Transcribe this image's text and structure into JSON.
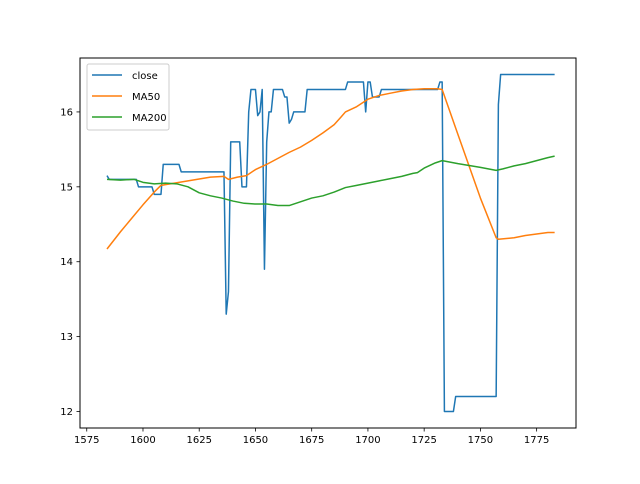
{
  "chart_data": {
    "type": "line",
    "title": "",
    "xlabel": "",
    "ylabel": "",
    "xlim": [
      1572,
      1592.5
    ],
    "xlim_full": [
      1572,
      1792.5
    ],
    "ylim": [
      11.78,
      16.72
    ],
    "xticks": [
      1575,
      1600,
      1625,
      1650,
      1675,
      1700,
      1725,
      1750,
      1775
    ],
    "xtick_labels": [
      "1575",
      "1600",
      "1625",
      "1650",
      "1675",
      "1700",
      "1725",
      "1750",
      "1775"
    ],
    "yticks": [
      12,
      13,
      14,
      15,
      16
    ],
    "ytick_labels": [
      "12",
      "13",
      "14",
      "15",
      "16"
    ],
    "legend": {
      "position": "top-left",
      "entries": [
        "close",
        "MA50",
        "MA200"
      ]
    },
    "series": [
      {
        "name": "close",
        "color": "#1f77b4",
        "points": [
          [
            1584,
            15.15
          ],
          [
            1585,
            15.1
          ],
          [
            1597,
            15.1
          ],
          [
            1598,
            15.0
          ],
          [
            1604,
            15.0
          ],
          [
            1605,
            14.9
          ],
          [
            1608,
            14.9
          ],
          [
            1609,
            15.3
          ],
          [
            1616,
            15.3
          ],
          [
            1617,
            15.2
          ],
          [
            1636,
            15.2
          ],
          [
            1637,
            13.3
          ],
          [
            1638,
            13.6
          ],
          [
            1639,
            15.6
          ],
          [
            1643,
            15.6
          ],
          [
            1644,
            15.0
          ],
          [
            1646,
            15.0
          ],
          [
            1647,
            16.0
          ],
          [
            1648,
            16.3
          ],
          [
            1650,
            16.3
          ],
          [
            1651,
            15.95
          ],
          [
            1652,
            16.0
          ],
          [
            1653,
            16.3
          ],
          [
            1654,
            13.9
          ],
          [
            1655,
            15.6
          ],
          [
            1656,
            16.0
          ],
          [
            1657,
            16.0
          ],
          [
            1658,
            16.3
          ],
          [
            1662,
            16.3
          ],
          [
            1663,
            16.2
          ],
          [
            1664,
            16.2
          ],
          [
            1665,
            15.85
          ],
          [
            1666,
            15.9
          ],
          [
            1667,
            16.0
          ],
          [
            1672,
            16.0
          ],
          [
            1673,
            16.3
          ],
          [
            1690,
            16.3
          ],
          [
            1691,
            16.4
          ],
          [
            1698,
            16.4
          ],
          [
            1699,
            16.0
          ],
          [
            1700,
            16.4
          ],
          [
            1701,
            16.4
          ],
          [
            1702,
            16.2
          ],
          [
            1705,
            16.2
          ],
          [
            1706,
            16.3
          ],
          [
            1731,
            16.3
          ],
          [
            1732,
            16.4
          ],
          [
            1733,
            16.4
          ],
          [
            1734,
            12.0
          ],
          [
            1738,
            12.0
          ],
          [
            1739,
            12.2
          ],
          [
            1757,
            12.2
          ],
          [
            1758,
            16.1
          ],
          [
            1759,
            16.5
          ],
          [
            1783,
            16.5
          ]
        ]
      },
      {
        "name": "MA50",
        "color": "#ff7f0e",
        "points": [
          [
            1584,
            14.17
          ],
          [
            1590,
            14.4
          ],
          [
            1595,
            14.58
          ],
          [
            1600,
            14.76
          ],
          [
            1605,
            14.93
          ],
          [
            1608,
            15.02
          ],
          [
            1612,
            15.04
          ],
          [
            1620,
            15.08
          ],
          [
            1630,
            15.13
          ],
          [
            1636,
            15.14
          ],
          [
            1638,
            15.1
          ],
          [
            1642,
            15.13
          ],
          [
            1646,
            15.15
          ],
          [
            1650,
            15.23
          ],
          [
            1655,
            15.3
          ],
          [
            1660,
            15.38
          ],
          [
            1665,
            15.46
          ],
          [
            1670,
            15.53
          ],
          [
            1675,
            15.62
          ],
          [
            1680,
            15.72
          ],
          [
            1685,
            15.83
          ],
          [
            1688,
            15.93
          ],
          [
            1690,
            16.0
          ],
          [
            1695,
            16.07
          ],
          [
            1700,
            16.17
          ],
          [
            1705,
            16.22
          ],
          [
            1710,
            16.25
          ],
          [
            1715,
            16.28
          ],
          [
            1720,
            16.3
          ],
          [
            1725,
            16.31
          ],
          [
            1731,
            16.31
          ],
          [
            1733,
            16.3
          ],
          [
            1740,
            15.7
          ],
          [
            1750,
            14.85
          ],
          [
            1757,
            14.32
          ],
          [
            1758,
            14.3
          ],
          [
            1765,
            14.32
          ],
          [
            1770,
            14.35
          ],
          [
            1775,
            14.37
          ],
          [
            1780,
            14.39
          ],
          [
            1783,
            14.39
          ]
        ]
      },
      {
        "name": "MA200",
        "color": "#2ca02c",
        "points": [
          [
            1584,
            15.1
          ],
          [
            1590,
            15.09
          ],
          [
            1596,
            15.1
          ],
          [
            1600,
            15.06
          ],
          [
            1605,
            15.04
          ],
          [
            1610,
            15.05
          ],
          [
            1615,
            15.04
          ],
          [
            1620,
            15.0
          ],
          [
            1625,
            14.92
          ],
          [
            1630,
            14.88
          ],
          [
            1635,
            14.85
          ],
          [
            1640,
            14.81
          ],
          [
            1645,
            14.78
          ],
          [
            1650,
            14.77
          ],
          [
            1655,
            14.77
          ],
          [
            1660,
            14.75
          ],
          [
            1665,
            14.75
          ],
          [
            1670,
            14.8
          ],
          [
            1675,
            14.85
          ],
          [
            1680,
            14.88
          ],
          [
            1685,
            14.93
          ],
          [
            1690,
            14.99
          ],
          [
            1695,
            15.02
          ],
          [
            1700,
            15.05
          ],
          [
            1705,
            15.08
          ],
          [
            1710,
            15.11
          ],
          [
            1715,
            15.14
          ],
          [
            1720,
            15.18
          ],
          [
            1722,
            15.19
          ],
          [
            1725,
            15.25
          ],
          [
            1730,
            15.32
          ],
          [
            1733,
            15.35
          ],
          [
            1740,
            15.31
          ],
          [
            1750,
            15.26
          ],
          [
            1757,
            15.22
          ],
          [
            1760,
            15.24
          ],
          [
            1765,
            15.28
          ],
          [
            1770,
            15.31
          ],
          [
            1775,
            15.35
          ],
          [
            1780,
            15.39
          ],
          [
            1783,
            15.41
          ]
        ]
      }
    ]
  }
}
